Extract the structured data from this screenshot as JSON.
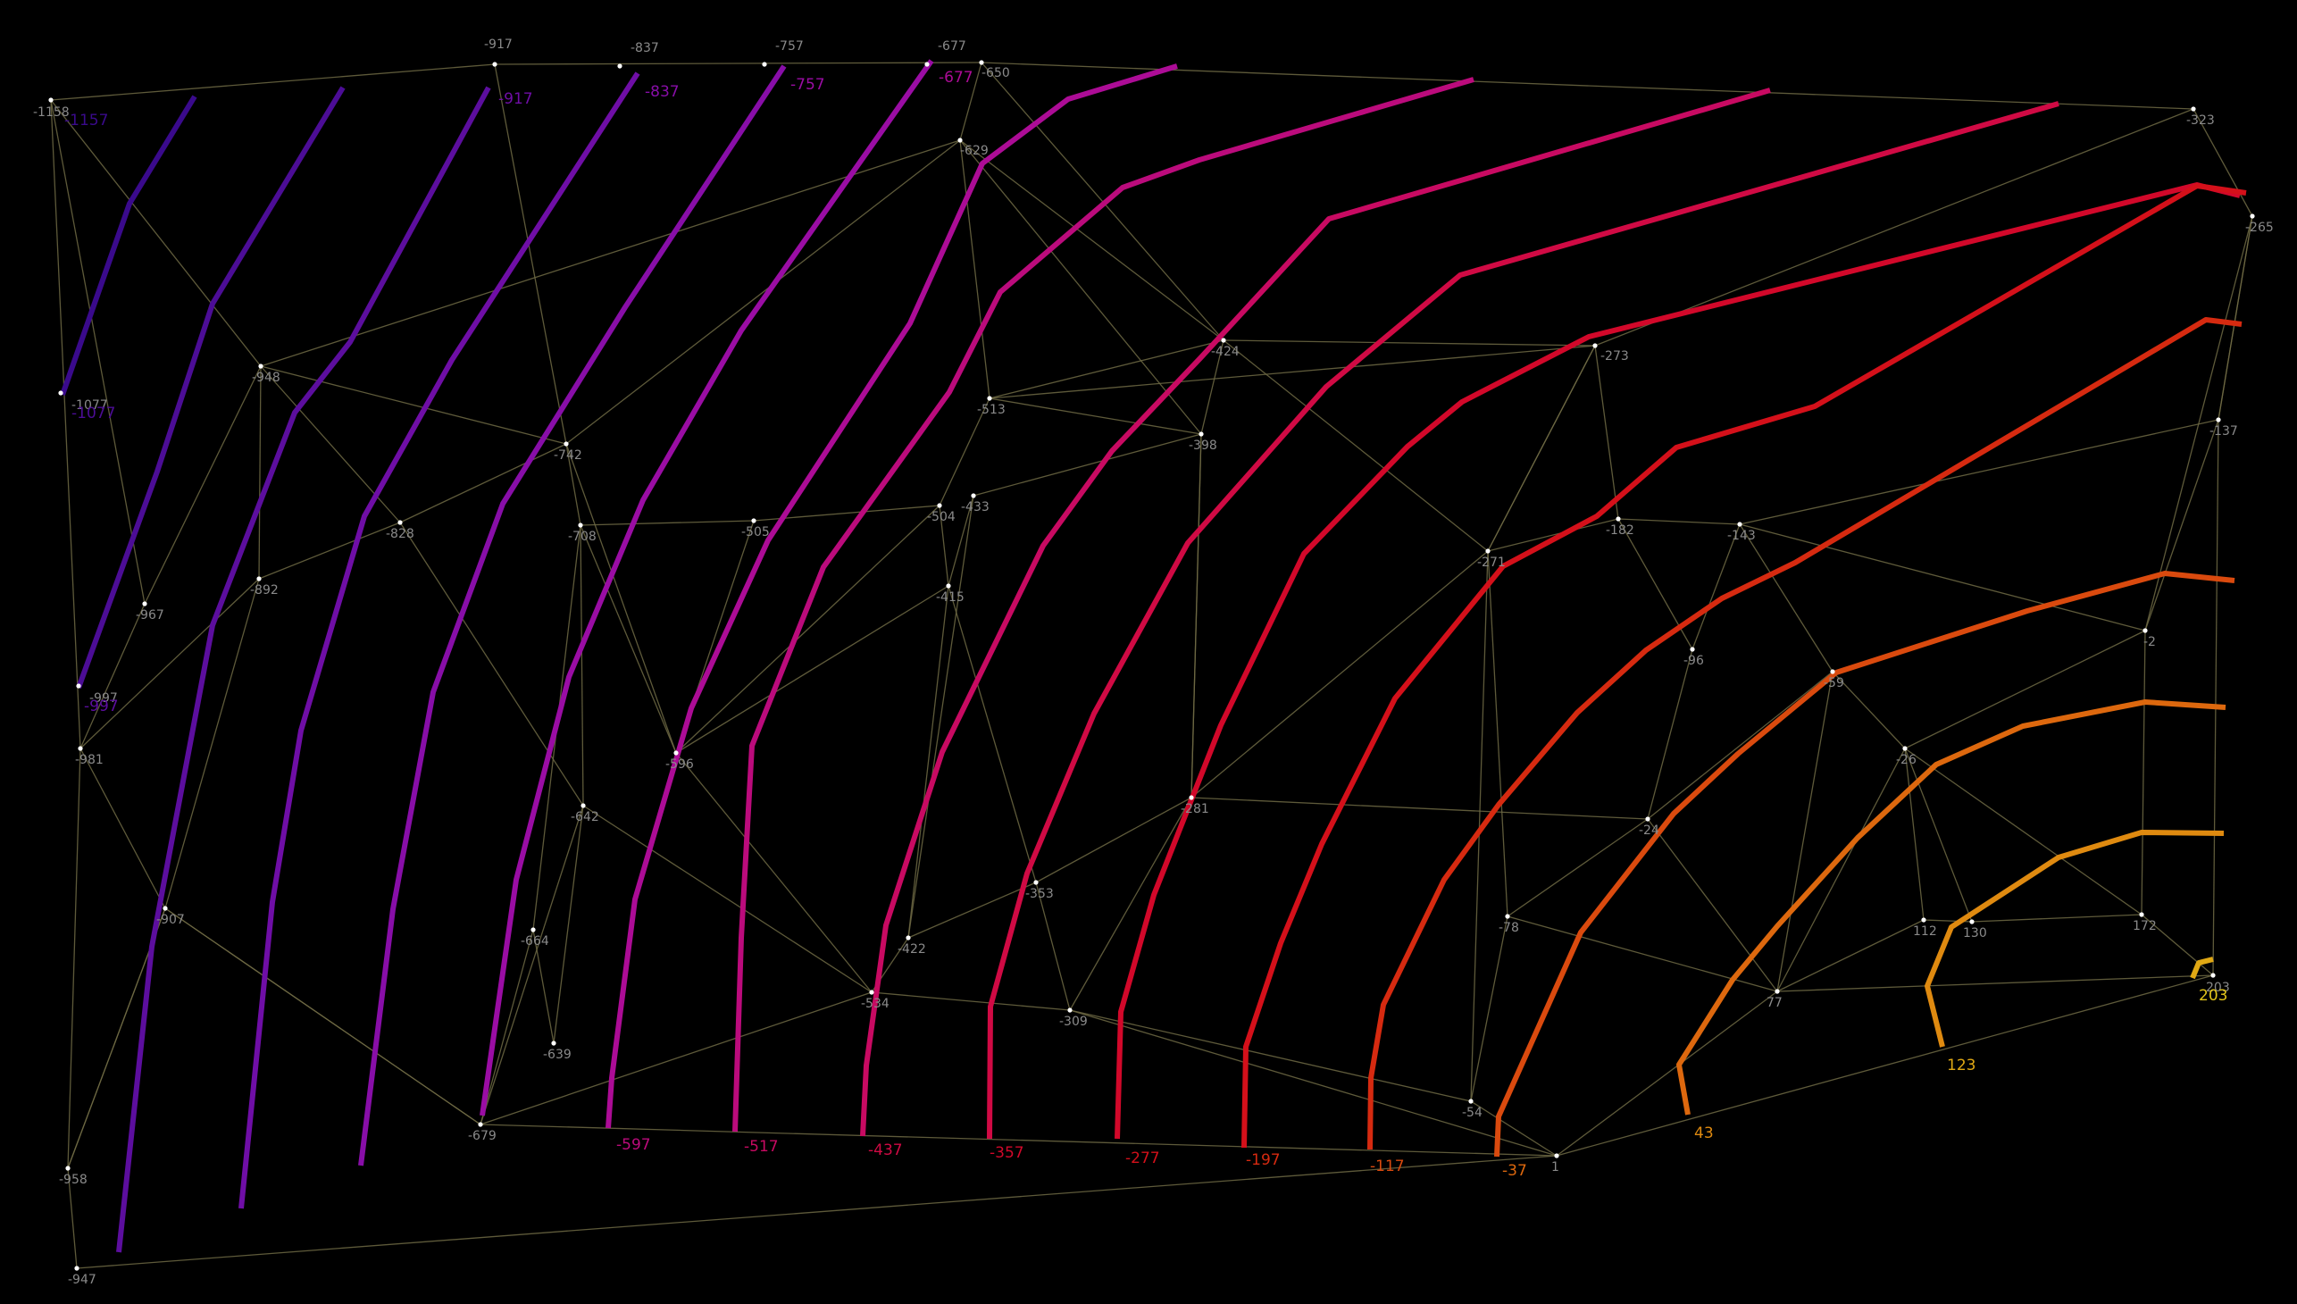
{
  "diagram": {
    "background": "#000000",
    "edge_color": "#6e6a44",
    "node_color": "#ffffff",
    "node_label_color": "#8a8a8a",
    "node_values": [
      "-1158",
      "-1077",
      "-997",
      "-917",
      "-837",
      "-757",
      "-677",
      "-650",
      "-629",
      "-948",
      "-967",
      "-981",
      "-892",
      "-907",
      "-958",
      "-947",
      "-828",
      "-742",
      "-708",
      "-664",
      "-639",
      "-642",
      "-679",
      "-596",
      "-534",
      "-422",
      "-504",
      "-505",
      "-513",
      "-398",
      "-424",
      "-415",
      "-433",
      "-353",
      "-309",
      "-281",
      "-271",
      "-273",
      "-182",
      "-143",
      "-96",
      "-59",
      "-24",
      "-78",
      "-54",
      "-2",
      "-26",
      "-137",
      "-265",
      "-323",
      "77",
      "112",
      "130",
      "172",
      "203",
      "1"
    ],
    "contour_values": [
      "-1157",
      "-1077",
      "-997",
      "-917",
      "-837",
      "-757",
      "-677",
      "-597",
      "-517",
      "-437",
      "-357",
      "-277",
      "-197",
      "-117",
      "-37",
      "43",
      "123",
      "203"
    ],
    "contour_colors": [
      "#3a0a8c",
      "#4c0d96",
      "#5c0e9e",
      "#6f0ea6",
      "#880ea8",
      "#9a0da4",
      "#ac0c96",
      "#bb0b7c",
      "#c80a62",
      "#d00a44",
      "#d2082a",
      "#d4101a",
      "#d62a10",
      "#da4a0e",
      "#dd680e",
      "#df8a10",
      "#e0a814",
      "#e2c41a"
    ]
  }
}
